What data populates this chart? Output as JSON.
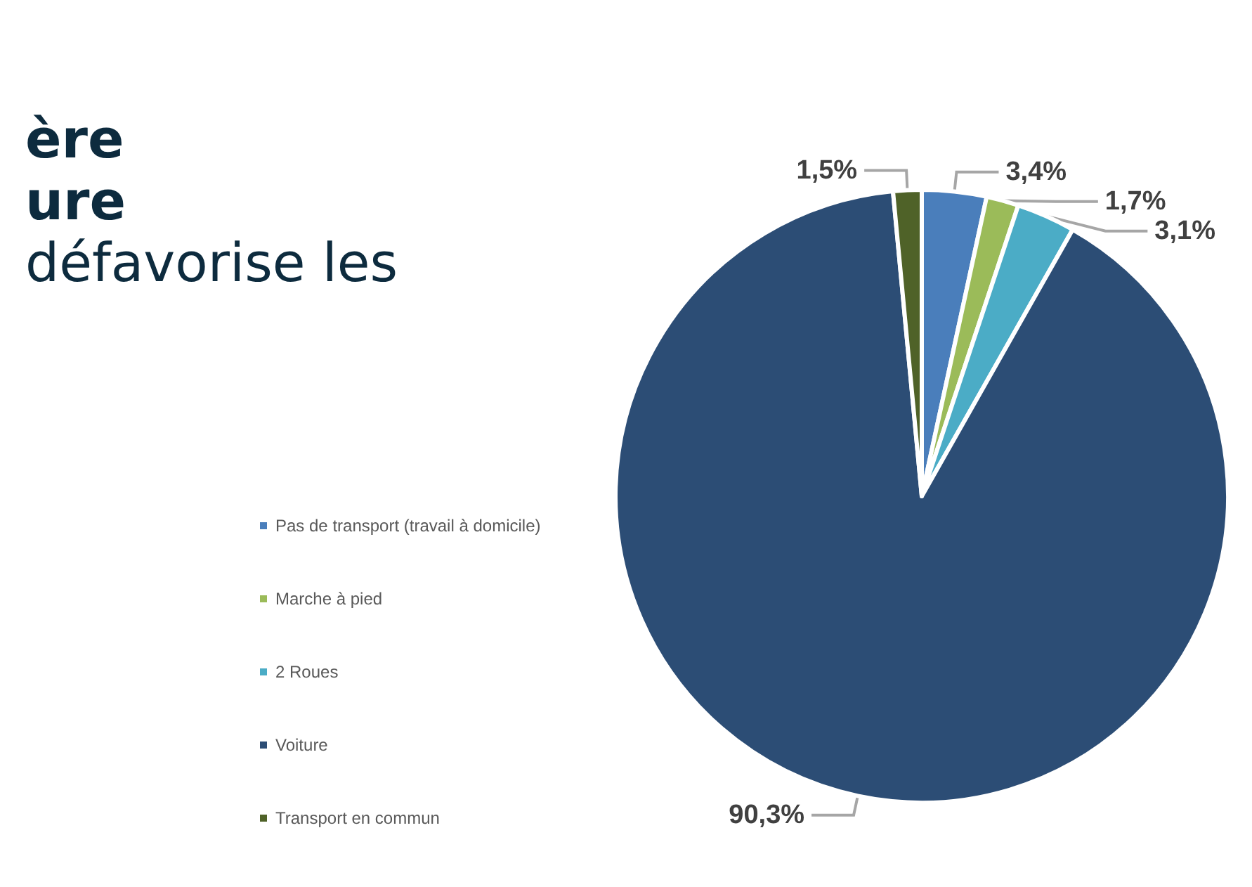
{
  "chart_data": {
    "type": "pie",
    "annotations": [
      "ère",
      "ure",
      "défavorise les"
    ],
    "categories": [
      "Pas de transport (travail à domicile)",
      "Marche à pied",
      "2 Roues",
      "Voiture",
      "Transport en commun"
    ],
    "values": [
      3.4,
      1.7,
      3.1,
      90.3,
      1.5
    ],
    "colors": [
      "#4a7ebb",
      "#9bbb59",
      "#4bacc6",
      "#2c4d75",
      "#4f6228"
    ],
    "value_labels": [
      "3,4%",
      "1,7%",
      "3,1%",
      "90,3%",
      "1,5%"
    ],
    "legend": "left"
  }
}
